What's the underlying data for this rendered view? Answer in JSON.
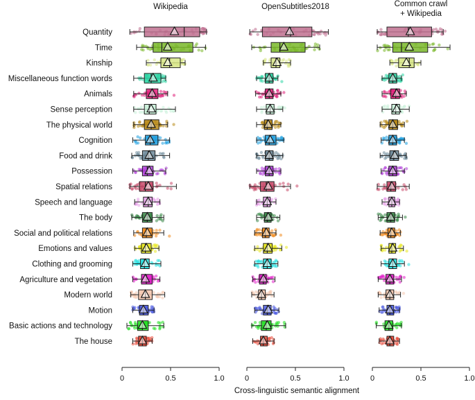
{
  "chart_data": {
    "type": "boxplot",
    "xlabel": "Cross-linguistic semantic alignment",
    "xlim": [
      0,
      1.0
    ],
    "xticks": [
      "0",
      "0.5",
      "1.0"
    ],
    "tick_values": [
      0,
      0.5,
      1.0
    ],
    "categories": [
      {
        "name": "Quantity",
        "color": "#c0708f"
      },
      {
        "name": "Time",
        "color": "#7ab82a"
      },
      {
        "name": "Kinship",
        "color": "#d8e68a"
      },
      {
        "name": "Miscellaneous function words",
        "color": "#2fd6a6"
      },
      {
        "name": "Animals",
        "color": "#e0207a"
      },
      {
        "name": "Sense perception",
        "color": "#c8f0d8"
      },
      {
        "name": "The physical world",
        "color": "#b88a18"
      },
      {
        "name": "Cognition",
        "color": "#1fa0e0"
      },
      {
        "name": "Food and drink",
        "color": "#6e8a9a"
      },
      {
        "name": "Possession",
        "color": "#b040d8"
      },
      {
        "name": "Spatial relations",
        "color": "#c84a6a"
      },
      {
        "name": "Speech and language",
        "color": "#e6a0e8"
      },
      {
        "name": "The body",
        "color": "#3d8a4a"
      },
      {
        "name": "Social and political relations",
        "color": "#f08c20"
      },
      {
        "name": "Emotions and values",
        "color": "#e8e820"
      },
      {
        "name": "Clothing and grooming",
        "color": "#28e0e0"
      },
      {
        "name": "Agriculture and vegetation",
        "color": "#e020c8"
      },
      {
        "name": "Modern world",
        "color": "#f4c8b0"
      },
      {
        "name": "Motion",
        "color": "#4a5ae0"
      },
      {
        "name": "Basic actions and technology",
        "color": "#22e022"
      },
      {
        "name": "The house",
        "color": "#e84a3a"
      }
    ],
    "panels": [
      {
        "title": "Wikipedia",
        "stats": [
          {
            "q1": 0.23,
            "median": 0.64,
            "q3": 0.8,
            "wlo": 0.08,
            "whi": 0.87,
            "mean": 0.54
          },
          {
            "q1": 0.32,
            "median": 0.41,
            "q3": 0.73,
            "wlo": 0.15,
            "whi": 0.86,
            "mean": 0.47
          },
          {
            "q1": 0.4,
            "median": 0.49,
            "q3": 0.6,
            "wlo": 0.25,
            "whi": 0.65,
            "mean": 0.47
          },
          {
            "q1": 0.23,
            "median": 0.3,
            "q3": 0.4,
            "wlo": 0.12,
            "whi": 0.45,
            "mean": 0.32
          },
          {
            "q1": 0.25,
            "median": 0.31,
            "q3": 0.37,
            "wlo": 0.12,
            "whi": 0.47,
            "mean": 0.31
          },
          {
            "q1": 0.23,
            "median": 0.28,
            "q3": 0.35,
            "wlo": 0.12,
            "whi": 0.55,
            "mean": 0.3
          },
          {
            "q1": 0.23,
            "median": 0.3,
            "q3": 0.38,
            "wlo": 0.12,
            "whi": 0.47,
            "mean": 0.3
          },
          {
            "q1": 0.24,
            "median": 0.29,
            "q3": 0.37,
            "wlo": 0.11,
            "whi": 0.49,
            "mean": 0.29
          },
          {
            "q1": 0.21,
            "median": 0.27,
            "q3": 0.34,
            "wlo": 0.1,
            "whi": 0.49,
            "mean": 0.28
          },
          {
            "q1": 0.21,
            "median": 0.26,
            "q3": 0.32,
            "wlo": 0.11,
            "whi": 0.45,
            "mean": 0.28
          },
          {
            "q1": 0.18,
            "median": 0.24,
            "q3": 0.32,
            "wlo": 0.08,
            "whi": 0.56,
            "mean": 0.27
          },
          {
            "q1": 0.22,
            "median": 0.27,
            "q3": 0.31,
            "wlo": 0.13,
            "whi": 0.39,
            "mean": 0.27
          },
          {
            "q1": 0.21,
            "median": 0.26,
            "q3": 0.31,
            "wlo": 0.1,
            "whi": 0.43,
            "mean": 0.26
          },
          {
            "q1": 0.21,
            "median": 0.25,
            "q3": 0.31,
            "wlo": 0.12,
            "whi": 0.43,
            "mean": 0.26
          },
          {
            "q1": 0.2,
            "median": 0.24,
            "q3": 0.3,
            "wlo": 0.13,
            "whi": 0.38,
            "mean": 0.25
          },
          {
            "q1": 0.19,
            "median": 0.23,
            "q3": 0.28,
            "wlo": 0.11,
            "whi": 0.4,
            "mean": 0.24
          },
          {
            "q1": 0.2,
            "median": 0.25,
            "q3": 0.31,
            "wlo": 0.11,
            "whi": 0.39,
            "mean": 0.24
          },
          {
            "q1": 0.17,
            "median": 0.24,
            "q3": 0.31,
            "wlo": 0.09,
            "whi": 0.44,
            "mean": 0.24
          },
          {
            "q1": 0.18,
            "median": 0.22,
            "q3": 0.27,
            "wlo": 0.11,
            "whi": 0.33,
            "mean": 0.22
          },
          {
            "q1": 0.16,
            "median": 0.21,
            "q3": 0.27,
            "wlo": 0.05,
            "whi": 0.43,
            "mean": 0.21
          },
          {
            "q1": 0.17,
            "median": 0.21,
            "q3": 0.25,
            "wlo": 0.11,
            "whi": 0.31,
            "mean": 0.21
          }
        ]
      },
      {
        "title": "OpenSubtitles2018",
        "stats": [
          {
            "q1": 0.16,
            "median": 0.45,
            "q3": 0.67,
            "wlo": 0.03,
            "whi": 0.84,
            "mean": 0.44
          },
          {
            "q1": 0.25,
            "median": 0.34,
            "q3": 0.6,
            "wlo": 0.05,
            "whi": 0.75,
            "mean": 0.38
          },
          {
            "q1": 0.25,
            "median": 0.3,
            "q3": 0.34,
            "wlo": 0.17,
            "whi": 0.45,
            "mean": 0.31
          },
          {
            "q1": 0.19,
            "median": 0.23,
            "q3": 0.27,
            "wlo": 0.1,
            "whi": 0.32,
            "mean": 0.23
          },
          {
            "q1": 0.19,
            "median": 0.23,
            "q3": 0.27,
            "wlo": 0.09,
            "whi": 0.35,
            "mean": 0.23
          },
          {
            "q1": 0.2,
            "median": 0.24,
            "q3": 0.28,
            "wlo": 0.1,
            "whi": 0.37,
            "mean": 0.24
          },
          {
            "q1": 0.18,
            "median": 0.21,
            "q3": 0.26,
            "wlo": 0.1,
            "whi": 0.35,
            "mean": 0.22
          },
          {
            "q1": 0.19,
            "median": 0.23,
            "q3": 0.3,
            "wlo": 0.1,
            "whi": 0.38,
            "mean": 0.24
          },
          {
            "q1": 0.19,
            "median": 0.23,
            "q3": 0.27,
            "wlo": 0.1,
            "whi": 0.37,
            "mean": 0.23
          },
          {
            "q1": 0.19,
            "median": 0.23,
            "q3": 0.27,
            "wlo": 0.1,
            "whi": 0.35,
            "mean": 0.23
          },
          {
            "q1": 0.14,
            "median": 0.2,
            "q3": 0.28,
            "wlo": 0.03,
            "whi": 0.45,
            "mean": 0.22
          },
          {
            "q1": 0.17,
            "median": 0.21,
            "q3": 0.24,
            "wlo": 0.1,
            "whi": 0.3,
            "mean": 0.21
          },
          {
            "q1": 0.18,
            "median": 0.21,
            "q3": 0.25,
            "wlo": 0.1,
            "whi": 0.34,
            "mean": 0.22
          },
          {
            "q1": 0.16,
            "median": 0.19,
            "q3": 0.23,
            "wlo": 0.08,
            "whi": 0.3,
            "mean": 0.2
          },
          {
            "q1": 0.17,
            "median": 0.21,
            "q3": 0.26,
            "wlo": 0.08,
            "whi": 0.36,
            "mean": 0.22
          },
          {
            "q1": 0.17,
            "median": 0.21,
            "q3": 0.25,
            "wlo": 0.08,
            "whi": 0.32,
            "mean": 0.21
          },
          {
            "q1": 0.13,
            "median": 0.17,
            "q3": 0.2,
            "wlo": 0.06,
            "whi": 0.29,
            "mean": 0.17
          },
          {
            "q1": 0.12,
            "median": 0.15,
            "q3": 0.19,
            "wlo": 0.05,
            "whi": 0.28,
            "mean": 0.15
          },
          {
            "q1": 0.17,
            "median": 0.21,
            "q3": 0.25,
            "wlo": 0.08,
            "whi": 0.33,
            "mean": 0.22
          },
          {
            "q1": 0.15,
            "median": 0.2,
            "q3": 0.25,
            "wlo": 0.05,
            "whi": 0.4,
            "mean": 0.21
          },
          {
            "q1": 0.14,
            "median": 0.17,
            "q3": 0.21,
            "wlo": 0.06,
            "whi": 0.28,
            "mean": 0.17
          }
        ]
      },
      {
        "title": "Common crawl\n+ Wikipedia",
        "stats": [
          {
            "q1": 0.15,
            "median": 0.37,
            "q3": 0.61,
            "wlo": 0.05,
            "whi": 0.73,
            "mean": 0.39
          },
          {
            "q1": 0.21,
            "median": 0.3,
            "q3": 0.57,
            "wlo": 0.05,
            "whi": 0.8,
            "mean": 0.38
          },
          {
            "q1": 0.27,
            "median": 0.38,
            "q3": 0.43,
            "wlo": 0.18,
            "whi": 0.5,
            "mean": 0.35
          },
          {
            "q1": 0.17,
            "median": 0.21,
            "q3": 0.25,
            "wlo": 0.1,
            "whi": 0.3,
            "mean": 0.21
          },
          {
            "q1": 0.19,
            "median": 0.24,
            "q3": 0.28,
            "wlo": 0.1,
            "whi": 0.35,
            "mean": 0.25
          },
          {
            "q1": 0.2,
            "median": 0.24,
            "q3": 0.28,
            "wlo": 0.1,
            "whi": 0.38,
            "mean": 0.25
          },
          {
            "q1": 0.17,
            "median": 0.21,
            "q3": 0.26,
            "wlo": 0.08,
            "whi": 0.33,
            "mean": 0.21
          },
          {
            "q1": 0.17,
            "median": 0.21,
            "q3": 0.25,
            "wlo": 0.09,
            "whi": 0.33,
            "mean": 0.21
          },
          {
            "q1": 0.18,
            "median": 0.22,
            "q3": 0.27,
            "wlo": 0.08,
            "whi": 0.35,
            "mean": 0.23
          },
          {
            "q1": 0.17,
            "median": 0.21,
            "q3": 0.25,
            "wlo": 0.09,
            "whi": 0.33,
            "mean": 0.21
          },
          {
            "q1": 0.15,
            "median": 0.19,
            "q3": 0.24,
            "wlo": 0.05,
            "whi": 0.38,
            "mean": 0.2
          },
          {
            "q1": 0.17,
            "median": 0.2,
            "q3": 0.23,
            "wlo": 0.1,
            "whi": 0.28,
            "mean": 0.2
          },
          {
            "q1": 0.15,
            "median": 0.19,
            "q3": 0.23,
            "wlo": 0.06,
            "whi": 0.31,
            "mean": 0.19
          },
          {
            "q1": 0.16,
            "median": 0.19,
            "q3": 0.23,
            "wlo": 0.08,
            "whi": 0.29,
            "mean": 0.2
          },
          {
            "q1": 0.17,
            "median": 0.2,
            "q3": 0.24,
            "wlo": 0.09,
            "whi": 0.32,
            "mean": 0.21
          },
          {
            "q1": 0.17,
            "median": 0.21,
            "q3": 0.25,
            "wlo": 0.09,
            "whi": 0.33,
            "mean": 0.21
          },
          {
            "q1": 0.14,
            "median": 0.18,
            "q3": 0.22,
            "wlo": 0.06,
            "whi": 0.3,
            "mean": 0.18
          },
          {
            "q1": 0.14,
            "median": 0.18,
            "q3": 0.22,
            "wlo": 0.06,
            "whi": 0.29,
            "mean": 0.18
          },
          {
            "q1": 0.15,
            "median": 0.18,
            "q3": 0.22,
            "wlo": 0.07,
            "whi": 0.28,
            "mean": 0.18
          },
          {
            "q1": 0.13,
            "median": 0.17,
            "q3": 0.21,
            "wlo": 0.04,
            "whi": 0.3,
            "mean": 0.17
          },
          {
            "q1": 0.15,
            "median": 0.18,
            "q3": 0.22,
            "wlo": 0.07,
            "whi": 0.28,
            "mean": 0.18
          }
        ]
      }
    ]
  }
}
